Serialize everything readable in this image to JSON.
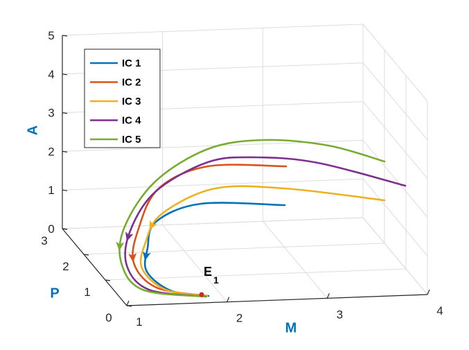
{
  "chart_data": {
    "type": "line",
    "projection": "3d",
    "title": "",
    "axes": {
      "x": {
        "label": "M",
        "range": [
          1,
          4
        ],
        "ticks": [
          "1",
          "2",
          "3",
          "4"
        ]
      },
      "y": {
        "label": "P",
        "range": [
          0,
          3
        ],
        "ticks": [
          "0",
          "1",
          "2",
          "3"
        ]
      },
      "z": {
        "label": "A",
        "range": [
          0,
          5
        ],
        "ticks": [
          "0",
          "1",
          "2",
          "3",
          "4",
          "5"
        ]
      }
    },
    "grid": true,
    "legend": {
      "position": "top-left"
    },
    "series": [
      {
        "name": "IC 1",
        "color": "#0072BD"
      },
      {
        "name": "IC 2",
        "color": "#D95319"
      },
      {
        "name": "IC 3",
        "color": "#EDB120"
      },
      {
        "name": "IC 4",
        "color": "#7E2F8E"
      },
      {
        "name": "IC 5",
        "color": "#77AC30"
      }
    ],
    "annotations": [
      {
        "main": "E",
        "sub": "1",
        "marker_color": "#D62728"
      }
    ]
  }
}
